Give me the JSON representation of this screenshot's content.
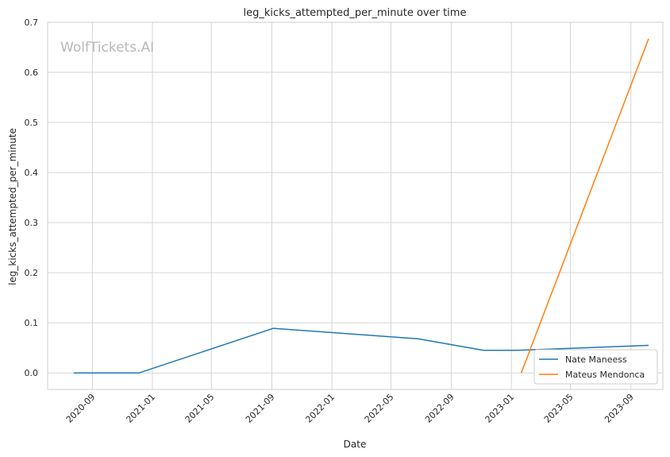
{
  "watermark": "WolfTickets.AI",
  "chart_data": {
    "type": "line",
    "title": "leg_kicks_attempted_per_minute over time",
    "xlabel": "Date",
    "ylabel": "leg_kicks_attempted_per_minute",
    "ylim": [
      -0.033,
      0.7
    ],
    "xlim": [
      "2020-06-02",
      "2023-11-05"
    ],
    "yticks": [
      0.0,
      0.1,
      0.2,
      0.3,
      0.4,
      0.5,
      0.6,
      0.7
    ],
    "ytick_labels": [
      "0.0",
      "0.1",
      "0.2",
      "0.3",
      "0.4",
      "0.5",
      "0.6",
      "0.7"
    ],
    "xticks": [
      "2020-09-01",
      "2021-01-01",
      "2021-05-01",
      "2021-09-01",
      "2022-01-01",
      "2022-05-01",
      "2022-09-01",
      "2023-01-01",
      "2023-05-01",
      "2023-09-01"
    ],
    "xtick_labels": [
      "2020-09",
      "2021-01",
      "2021-05",
      "2021-09",
      "2022-01",
      "2022-05",
      "2022-09",
      "2023-01",
      "2023-05",
      "2023-09"
    ],
    "grid": true,
    "legend_position": "bottom-right",
    "series": [
      {
        "name": "Nate Maneess",
        "color": "#1f77b4",
        "points": [
          {
            "x": "2020-07-25",
            "y": 0.0
          },
          {
            "x": "2020-12-05",
            "y": 0.0
          },
          {
            "x": "2021-09-04",
            "y": 0.089
          },
          {
            "x": "2022-06-25",
            "y": 0.068
          },
          {
            "x": "2022-11-05",
            "y": 0.045
          },
          {
            "x": "2023-01-14",
            "y": 0.045
          },
          {
            "x": "2023-10-07",
            "y": 0.055
          }
        ]
      },
      {
        "name": "Mateus Mendonca",
        "color": "#ff7f0e",
        "points": [
          {
            "x": "2023-01-21",
            "y": 0.0
          },
          {
            "x": "2023-10-07",
            "y": 0.667
          }
        ]
      }
    ]
  }
}
